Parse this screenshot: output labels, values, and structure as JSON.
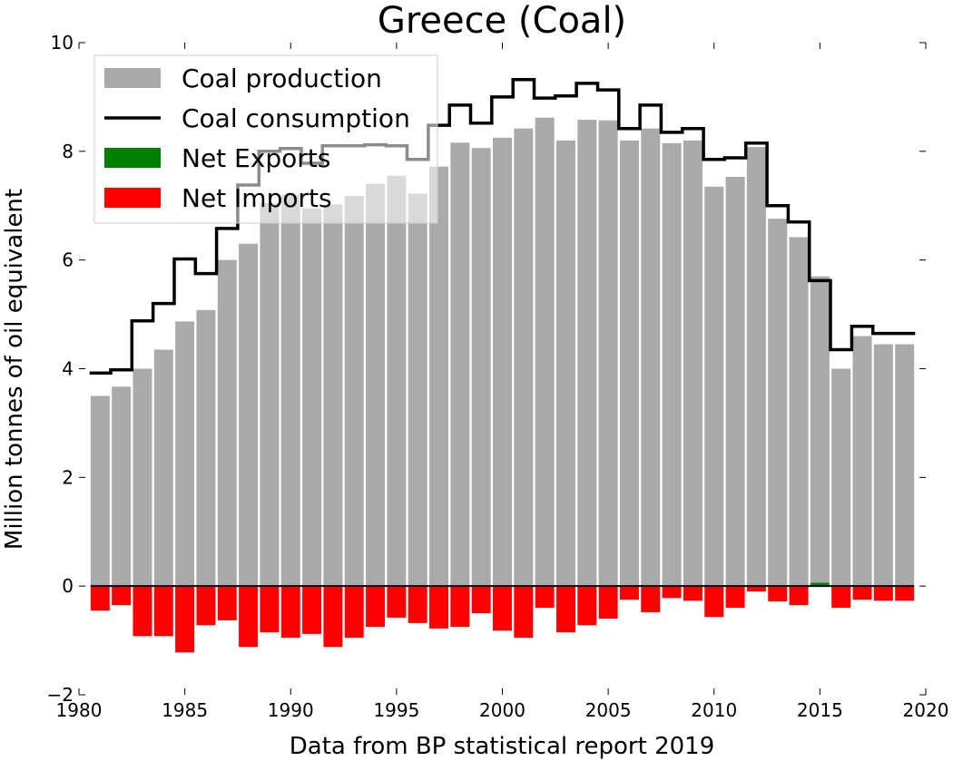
{
  "chart_data": {
    "type": "bar",
    "title": "Greece (Coal)",
    "xlabel": "Data from BP statistical report 2019",
    "ylabel": "Million tonnes of oil equivalent",
    "xlim": [
      1980,
      2020
    ],
    "ylim": [
      -2,
      10
    ],
    "xticks": [
      1980,
      1985,
      1990,
      1995,
      2000,
      2005,
      2010,
      2015,
      2020
    ],
    "yticks": [
      -2,
      0,
      2,
      4,
      6,
      8,
      10
    ],
    "ytick_labels": [
      "−2",
      "0",
      "2",
      "4",
      "6",
      "8",
      "10"
    ],
    "grid": false,
    "legend_position": "top-left",
    "years": [
      1981,
      1982,
      1983,
      1984,
      1985,
      1986,
      1987,
      1988,
      1989,
      1990,
      1991,
      1992,
      1993,
      1994,
      1995,
      1996,
      1997,
      1998,
      1999,
      2000,
      2001,
      2002,
      2003,
      2004,
      2005,
      2006,
      2007,
      2008,
      2009,
      2010,
      2011,
      2012,
      2013,
      2014,
      2015,
      2016,
      2017,
      2018,
      2019
    ],
    "series": [
      {
        "name": "Coal production",
        "kind": "bar",
        "color": "#aaaaaa",
        "values": [
          3.5,
          3.67,
          4.0,
          4.35,
          4.87,
          5.08,
          6.0,
          6.3,
          7.05,
          7.2,
          6.95,
          7.02,
          7.18,
          7.4,
          7.55,
          7.22,
          7.72,
          8.16,
          8.06,
          8.25,
          8.42,
          8.62,
          8.2,
          8.58,
          8.57,
          8.2,
          8.42,
          8.15,
          8.2,
          7.35,
          7.53,
          8.08,
          6.76,
          6.42,
          5.7,
          4.0,
          4.6,
          4.45,
          4.45
        ]
      },
      {
        "name": "Coal consumption",
        "kind": "step",
        "color": "#000000",
        "values": [
          3.92,
          3.98,
          4.88,
          5.2,
          6.02,
          5.75,
          6.58,
          7.38,
          8.0,
          8.05,
          7.78,
          8.1,
          8.1,
          8.12,
          8.1,
          7.85,
          8.48,
          8.85,
          8.52,
          9.0,
          9.32,
          8.98,
          9.02,
          9.25,
          9.13,
          8.42,
          8.85,
          8.35,
          8.42,
          7.85,
          7.88,
          8.15,
          7.0,
          6.7,
          5.62,
          4.35,
          4.78,
          4.65,
          4.65
        ]
      },
      {
        "name": "Net Exports",
        "kind": "bar",
        "color": "#008000",
        "values": [
          0,
          0,
          0,
          0,
          0,
          0,
          0,
          0,
          0,
          0,
          0,
          0,
          0,
          0,
          0,
          0,
          0,
          0,
          0,
          0,
          0,
          0,
          0,
          0,
          0,
          0,
          0,
          0,
          0,
          0,
          0,
          0,
          0,
          0,
          0.06,
          0,
          0,
          0,
          0
        ]
      },
      {
        "name": "Net Imports",
        "kind": "bar",
        "color": "#ff0000",
        "values": [
          -0.45,
          -0.35,
          -0.92,
          -0.92,
          -1.22,
          -0.72,
          -0.63,
          -1.12,
          -0.85,
          -0.95,
          -0.88,
          -1.12,
          -0.95,
          -0.75,
          -0.58,
          -0.68,
          -0.78,
          -0.75,
          -0.5,
          -0.82,
          -0.95,
          -0.4,
          -0.85,
          -0.72,
          -0.6,
          -0.25,
          -0.48,
          -0.22,
          -0.27,
          -0.57,
          -0.4,
          -0.1,
          -0.28,
          -0.35,
          0,
          -0.4,
          -0.25,
          -0.27,
          -0.27
        ]
      }
    ]
  }
}
